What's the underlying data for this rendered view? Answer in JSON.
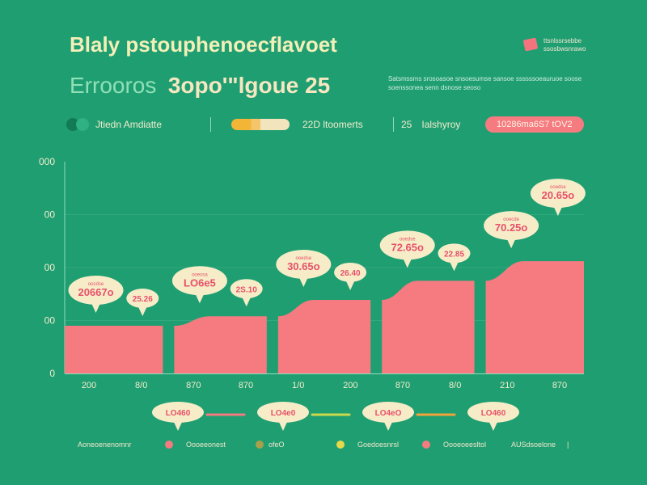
{
  "header": {
    "title": "Blaly pstouphenoecflavoet",
    "subtitle_a": "Errooros",
    "subtitle_b": "3opo'\"lgoue 25",
    "top_right_text": "ttsnlssrsebbe ssosbwsnrawo",
    "description": "Satsmssms srosoasoe snsoesumse sansoe ssssssoeauruoe soose soenssonea senn dsnose seoso"
  },
  "legend": {
    "item1": "Jtiedn Amdiatte",
    "item2": "22D ltoomerts",
    "item3_num": "25",
    "item3": "Ialshyroy",
    "badge": "10286ma6S7 tOV2"
  },
  "colors": {
    "background": "#1f9e72",
    "bar": "#f57b80",
    "bubble": "#f6edc8",
    "bubble_text": "#e8506a",
    "axis_text": "#f3eccc",
    "grid": "#8fdcbd",
    "accent_yellow": "#f2b536"
  },
  "chart_data": {
    "type": "area",
    "y_ticks": [
      "000",
      "00",
      "00",
      "00",
      "0"
    ],
    "x_ticks": [
      "200",
      "8/0",
      "870",
      "870",
      "1/0",
      "200",
      "870",
      "8/0",
      "210",
      "870"
    ],
    "values": [
      90,
      108,
      139,
      175,
      212
    ],
    "ylim": [
      0,
      400
    ],
    "bubbles": [
      {
        "label": "20667o",
        "small": "oocdse"
      },
      {
        "label": "25.26",
        "small": ""
      },
      {
        "label": "LO6e5",
        "small": "ooeosa"
      },
      {
        "label": "2S.10",
        "small": ""
      },
      {
        "label": "30.65o",
        "small": "ooedse"
      },
      {
        "label": "26.40",
        "small": ""
      },
      {
        "label": "72.65o",
        "small": "ooedse"
      },
      {
        "label": "22.85",
        "small": ""
      },
      {
        "label": "70.25o",
        "small": "ooecde"
      },
      {
        "label": "20.65o",
        "small": "ooedse"
      }
    ]
  },
  "bottom": {
    "bubbles": [
      "LO460",
      "LO4e0",
      "LO4eO",
      "LO460"
    ],
    "legend_left": "Aoneoenenomnr",
    "legend_items": [
      "Oooeeonest",
      "ofeO",
      "Goedoesnrsl",
      "Oooeoeesltol"
    ],
    "legend_right": "AUSdsoelone"
  }
}
